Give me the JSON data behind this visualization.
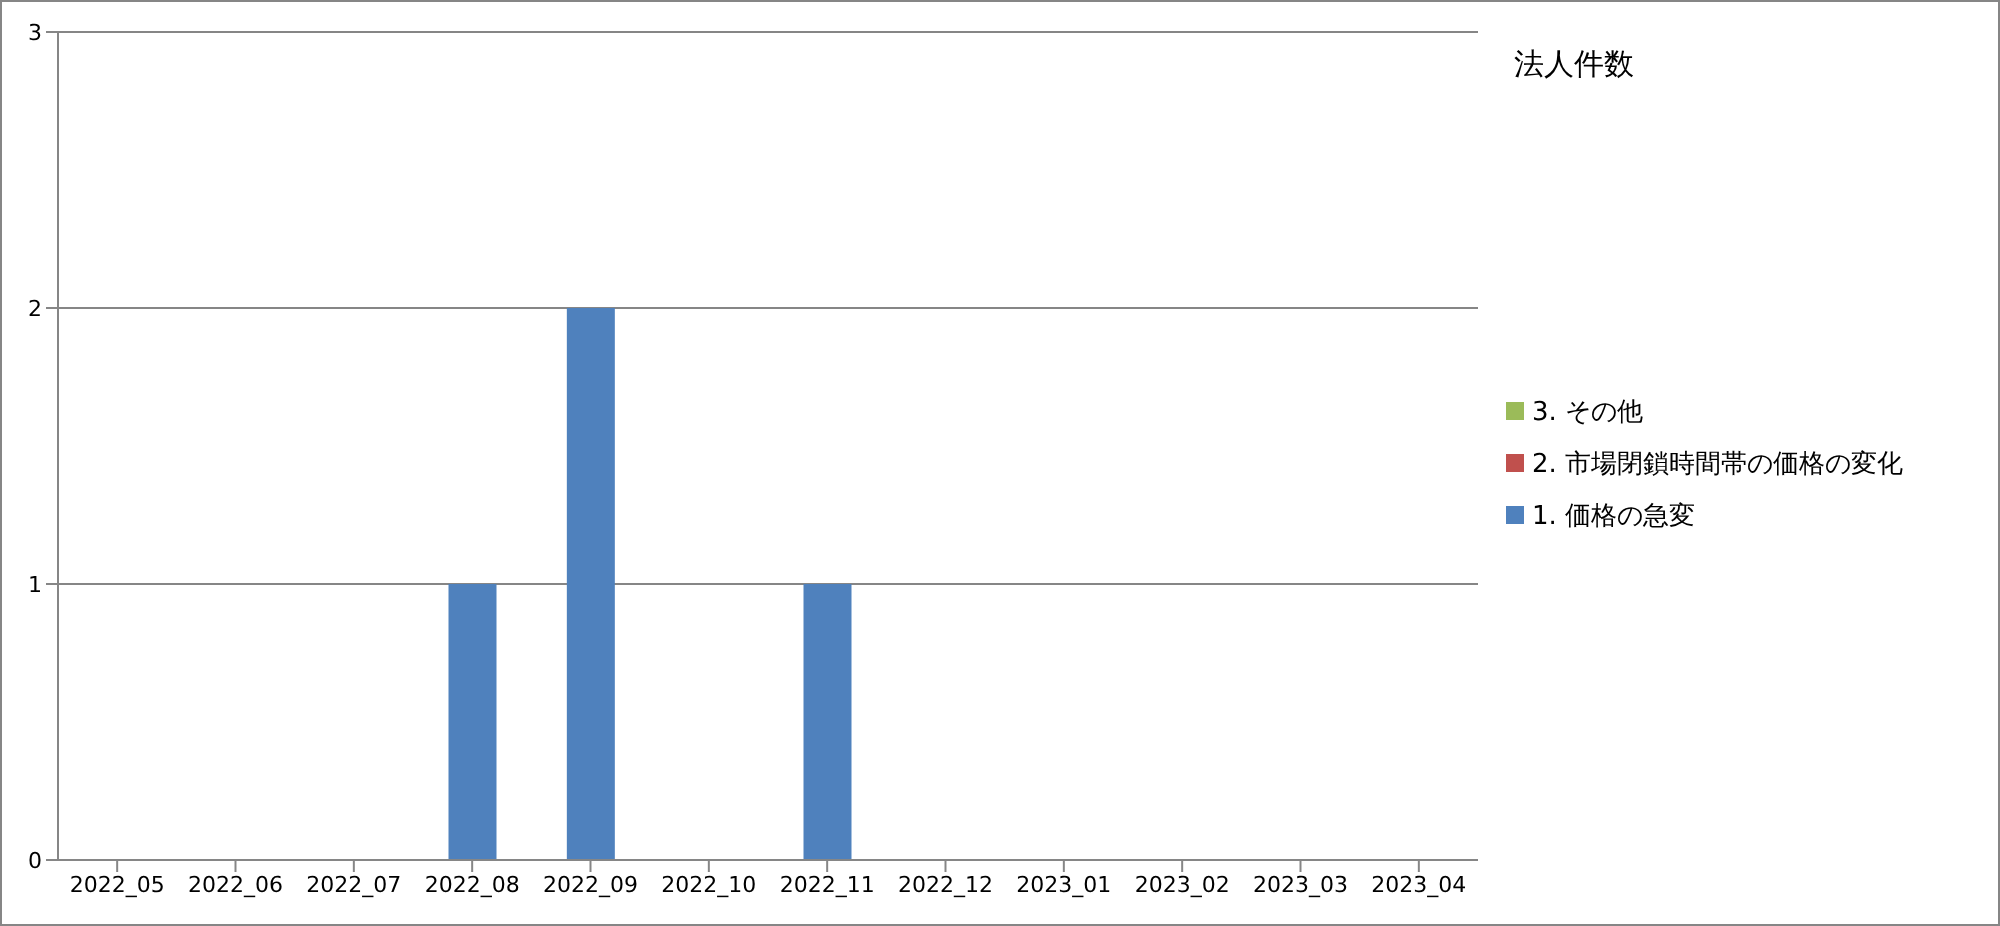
{
  "chart_data": {
    "type": "bar",
    "title": "法人件数",
    "categories": [
      "2022_05",
      "2022_06",
      "2022_07",
      "2022_08",
      "2022_09",
      "2022_10",
      "2022_11",
      "2022_12",
      "2023_01",
      "2023_02",
      "2023_03",
      "2023_04"
    ],
    "series": [
      {
        "name": "1. 価格の急変",
        "color": "#4f81bd",
        "values": [
          0,
          0,
          0,
          1,
          2,
          0,
          1,
          0,
          0,
          0,
          0,
          0
        ]
      },
      {
        "name": "2. 市場閉鎖時間帯の価格の変化",
        "color": "#c0504d",
        "values": [
          0,
          0,
          0,
          0,
          0,
          0,
          0,
          0,
          0,
          0,
          0,
          0
        ]
      },
      {
        "name": "3. その他",
        "color": "#9bbb59",
        "values": [
          0,
          0,
          0,
          0,
          0,
          0,
          0,
          0,
          0,
          0,
          0,
          0
        ]
      }
    ],
    "stacked": true,
    "ylim": [
      0,
      3
    ],
    "yticks": [
      0,
      1,
      2,
      3
    ],
    "grid": "y",
    "legend": "right"
  }
}
